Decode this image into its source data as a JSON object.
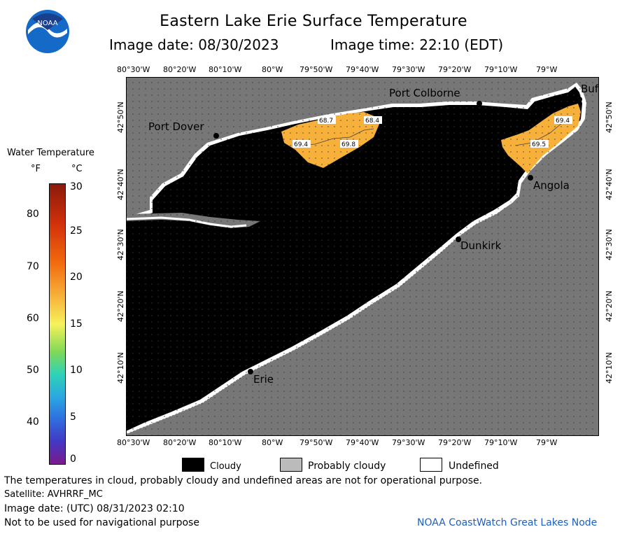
{
  "header": {
    "title": "Eastern Lake Erie Surface Temperature",
    "image_date": "Image date: 08/30/2023",
    "image_time": "Image time: 22:10 (EDT)"
  },
  "logo": {
    "text": "NOAA"
  },
  "axes": {
    "lon_ticks": [
      "80°30'W",
      "80°20'W",
      "80°10'W",
      "80°W",
      "79°50'W",
      "79°40'W",
      "79°30'W",
      "79°20'W",
      "79°10'W",
      "79°W"
    ],
    "lat_ticks": [
      "42°50'N",
      "42°40'N",
      "42°30'N",
      "42°20'N",
      "42°10'N"
    ]
  },
  "places": {
    "port_colborne": "Port Colborne",
    "port_dover": "Port Dover",
    "angola": "Angola",
    "dunkirk": "Dunkirk",
    "erie": "Erie",
    "buffalo": "Buf"
  },
  "temp_labels": [
    "68.7",
    "68.4",
    "69.4",
    "69.8",
    "69.4",
    "69.5"
  ],
  "legend": {
    "title": "Water Temperature",
    "unit_f": "°F",
    "unit_c": "°C",
    "f_ticks": [
      "80",
      "70",
      "60",
      "50",
      "40"
    ],
    "c_ticks": [
      "30",
      "25",
      "20",
      "15",
      "10",
      "5",
      "0"
    ]
  },
  "key": {
    "cloudy": "Cloudy",
    "probably_cloudy": "Probably cloudy",
    "undefined": "Undefined"
  },
  "notes": {
    "disclaimer": "The temperatures in cloud, probably cloudy and undefined areas are not for operational purpose.",
    "satellite": "Satellite: AVHRRF_MC",
    "utc": "Image date: (UTC) 08/31/2023  02:10",
    "nav": "Not to be used for navigational purpose",
    "source": "NOAA CoastWatch Great Lakes Node"
  },
  "colors": {
    "land": "#777777",
    "cloud": "#000000",
    "warm_water": "#f7b13a",
    "probably_cloudy": "#bbbbbb",
    "undefined": "#ffffff",
    "source_text": "#1f5fbf"
  }
}
